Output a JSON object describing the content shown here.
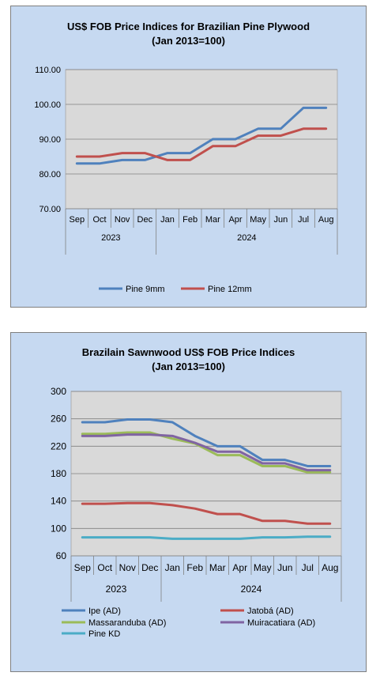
{
  "chart_data": [
    {
      "type": "line",
      "title_line1": "US$ FOB Price Indices for Brazilian  Pine Plywood",
      "title_line2": "(Jan 2013=100)",
      "categories": [
        "Sep",
        "Oct",
        "Nov",
        "Dec",
        "Jan",
        "Feb",
        "Mar",
        "Apr",
        "May",
        "Jun",
        "Jul",
        "Aug"
      ],
      "year_groups": [
        {
          "label": "2023",
          "start": 0,
          "end": 3
        },
        {
          "label": "2024",
          "start": 4,
          "end": 11
        }
      ],
      "ylim": [
        70,
        110
      ],
      "yticks": [
        70,
        80,
        90,
        100,
        110
      ],
      "ytick_labels": [
        "70.00",
        "80.00",
        "90.00",
        "100.00",
        "110.00"
      ],
      "grid": true,
      "legend_position": "bottom",
      "series": [
        {
          "name": "Pine 9mm",
          "color": "#4f81bd",
          "values": [
            83,
            83,
            84,
            84,
            86,
            86,
            90,
            90,
            93,
            93,
            99,
            99
          ]
        },
        {
          "name": "Pine 12mm",
          "color": "#c0504d",
          "values": [
            85,
            85,
            86,
            86,
            84,
            84,
            88,
            88,
            91,
            91,
            93,
            93
          ]
        }
      ]
    },
    {
      "type": "line",
      "title_line1": "Brazilain Sawnwood US$ FOB Price Indices",
      "title_line2": "(Jan 2013=100)",
      "categories": [
        "Sep",
        "Oct",
        "Nov",
        "Dec",
        "Jan",
        "Feb",
        "Mar",
        "Apr",
        "May",
        "Jun",
        "Jul",
        "Aug"
      ],
      "year_groups": [
        {
          "label": "2023",
          "start": 0,
          "end": 3
        },
        {
          "label": "2024",
          "start": 4,
          "end": 11
        }
      ],
      "ylim": [
        60,
        300
      ],
      "yticks": [
        60,
        100,
        140,
        180,
        220,
        260,
        300
      ],
      "ytick_labels": [
        "60",
        "100",
        "140",
        "180",
        "220",
        "260",
        "300"
      ],
      "grid": true,
      "legend_position": "bottom",
      "series": [
        {
          "name": "Ipe (AD)",
          "color": "#4f81bd",
          "values": [
            255,
            255,
            259,
            259,
            255,
            235,
            220,
            220,
            200,
            200,
            191,
            191
          ]
        },
        {
          "name": "Jatobá (AD)",
          "color": "#c0504d",
          "values": [
            136,
            136,
            137,
            137,
            134,
            129,
            121,
            121,
            111,
            111,
            107,
            107
          ]
        },
        {
          "name": "Massaranduba (AD)",
          "color": "#9bbb59",
          "values": [
            238,
            238,
            240,
            240,
            231,
            224,
            207,
            207,
            191,
            191,
            182,
            182
          ]
        },
        {
          "name": "Muiracatiara (AD)",
          "color": "#8064a2",
          "values": [
            235,
            235,
            237,
            237,
            235,
            225,
            212,
            212,
            195,
            195,
            185,
            185
          ]
        },
        {
          "name": "Pine KD",
          "color": "#4bacc6",
          "values": [
            87,
            87,
            87,
            87,
            85,
            85,
            85,
            85,
            87,
            87,
            88,
            88
          ]
        }
      ]
    }
  ]
}
